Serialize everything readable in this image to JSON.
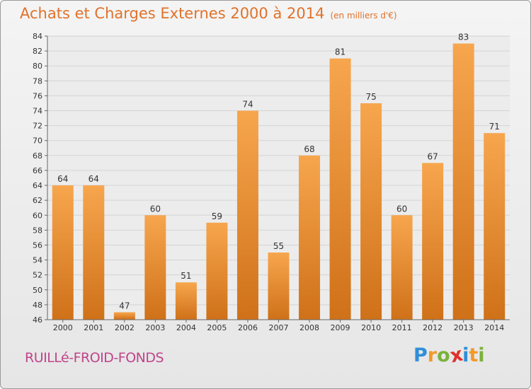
{
  "title": "Achats et Charges Externes 2000 à 2014",
  "unit": "(en milliers d'€)",
  "town": "RUILLé-FROID-FONDS",
  "logo": {
    "letters": [
      "P",
      "r",
      "o",
      "x",
      "i",
      "t",
      "i"
    ],
    "colors": [
      "#2f8fd8",
      "#f19a2a",
      "#7ab23a",
      "#e0302b",
      "#2f8fd8",
      "#f19a2a",
      "#7ab23a"
    ]
  },
  "colors": {
    "bar_light": "#f7a64e",
    "bar_dark": "#cf7119",
    "title": "#e0722b",
    "town": "#c0448a"
  },
  "chart_data": {
    "type": "bar",
    "categories": [
      "2000",
      "2001",
      "2002",
      "2003",
      "2004",
      "2005",
      "2006",
      "2007",
      "2008",
      "2009",
      "2010",
      "2011",
      "2012",
      "2013",
      "2014"
    ],
    "values": [
      64,
      64,
      47,
      60,
      51,
      59,
      74,
      55,
      68,
      81,
      75,
      60,
      67,
      83,
      71
    ],
    "ylim": [
      46,
      84
    ],
    "yticks": [
      46,
      48,
      50,
      52,
      54,
      56,
      58,
      60,
      62,
      64,
      66,
      68,
      70,
      72,
      74,
      76,
      78,
      80,
      82,
      84
    ],
    "grid": true
  }
}
